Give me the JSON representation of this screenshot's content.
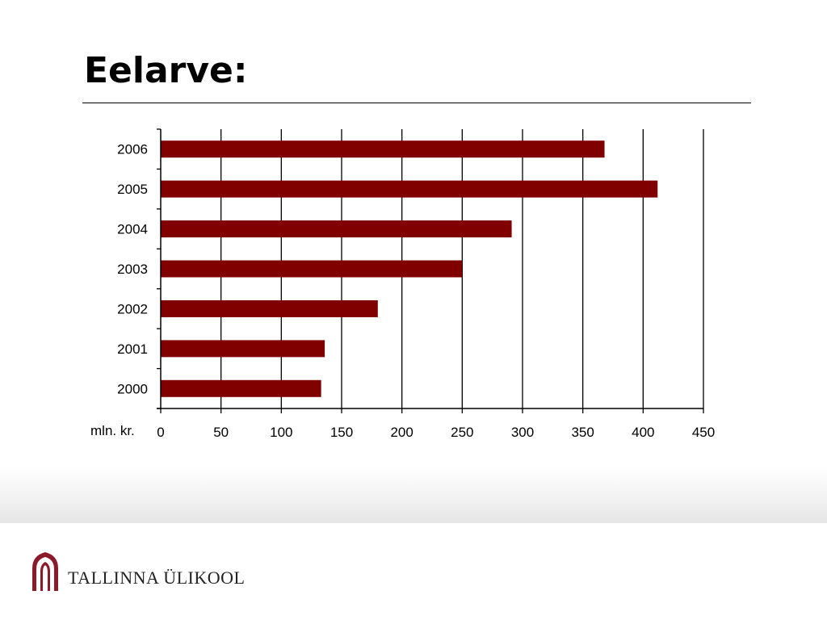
{
  "title": "Eelarve:",
  "footer": {
    "organization": "TALLINNA ÜLIKOOL"
  },
  "colors": {
    "bar": "#800000",
    "logo": "#8b1a2b"
  },
  "icons": {
    "logo": "university-arch-icon"
  },
  "chart_data": {
    "type": "bar",
    "orientation": "horizontal",
    "categories": [
      "2000",
      "2001",
      "2002",
      "2003",
      "2004",
      "2005",
      "2006"
    ],
    "values": [
      133,
      136,
      180,
      250,
      291,
      412,
      368
    ],
    "xlabel": "mln. kr.",
    "ylabel": "",
    "xlim": [
      0,
      450
    ],
    "xticks": [
      "0",
      "50",
      "100",
      "150",
      "200",
      "250",
      "300",
      "350",
      "400",
      "450"
    ],
    "grid": "vertical"
  }
}
